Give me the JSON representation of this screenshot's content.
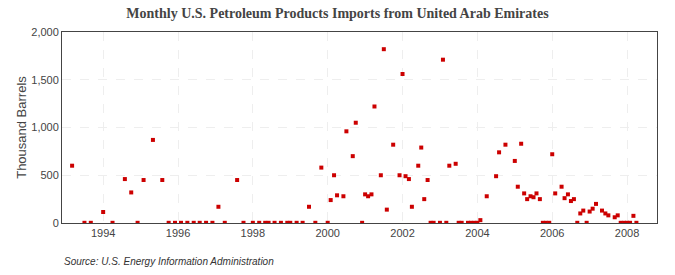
{
  "chart_data": {
    "type": "scatter",
    "title": "Monthly U.S. Petroleum Products Imports from United Arab Emirates",
    "ylabel": "Thousand Barrels",
    "annotations": [
      "Source: U.S. Energy Information Administration"
    ],
    "color": "#CC0000",
    "marker": "square",
    "grid": true,
    "xlim": [
      1992.9,
      2008.8
    ],
    "xticks": [
      1994,
      1996,
      1998,
      2000,
      2002,
      2004,
      2006,
      2008
    ],
    "ylim": [
      0,
      2000
    ],
    "yticks": [
      0,
      500,
      {
        "value": 1000,
        "label": "1,000"
      },
      {
        "value": 1500,
        "label": "1,500"
      },
      {
        "value": 2000,
        "label": "2,000"
      }
    ],
    "x": [
      1993.17,
      1993.5,
      1993.67,
      1994.0,
      1994.25,
      1994.58,
      1994.75,
      1994.92,
      1995.08,
      1995.33,
      1995.58,
      1995.75,
      1995.92,
      1996.08,
      1996.25,
      1996.42,
      1996.58,
      1996.75,
      1996.92,
      1997.08,
      1997.25,
      1997.58,
      1997.75,
      1998.0,
      1998.17,
      1998.33,
      1998.42,
      1998.58,
      1998.75,
      1998.92,
      1999.0,
      1999.17,
      1999.33,
      1999.5,
      1999.67,
      1999.83,
      2000.0,
      2000.08,
      2000.17,
      2000.25,
      2000.42,
      2000.5,
      2000.67,
      2000.75,
      2000.92,
      2001.0,
      2001.08,
      2001.17,
      2001.25,
      2001.42,
      2001.5,
      2001.58,
      2001.75,
      2001.92,
      2002.0,
      2002.08,
      2002.17,
      2002.25,
      2002.42,
      2002.5,
      2002.58,
      2002.67,
      2002.75,
      2002.83,
      2003.0,
      2003.08,
      2003.17,
      2003.25,
      2003.42,
      2003.5,
      2003.58,
      2003.75,
      2003.83,
      2003.92,
      2004.0,
      2004.08,
      2004.25,
      2004.5,
      2004.58,
      2004.75,
      2005.0,
      2005.08,
      2005.17,
      2005.25,
      2005.33,
      2005.42,
      2005.5,
      2005.58,
      2005.67,
      2005.75,
      2005.83,
      2005.92,
      2006.0,
      2006.08,
      2006.25,
      2006.33,
      2006.42,
      2006.5,
      2006.58,
      2006.67,
      2006.75,
      2006.83,
      2006.92,
      2007.0,
      2007.08,
      2007.17,
      2007.33,
      2007.42,
      2007.5,
      2007.67,
      2007.75,
      2007.83,
      2007.92,
      2008.0,
      2008.08,
      2008.17,
      2008.25
    ],
    "values": [
      600,
      2,
      2,
      115,
      2,
      460,
      320,
      2,
      450,
      870,
      450,
      2,
      2,
      2,
      2,
      2,
      2,
      2,
      2,
      170,
      2,
      450,
      2,
      2,
      2,
      2,
      2,
      2,
      2,
      2,
      2,
      2,
      2,
      170,
      2,
      580,
      2,
      240,
      500,
      290,
      280,
      960,
      700,
      1050,
      2,
      300,
      280,
      300,
      1220,
      500,
      1820,
      140,
      820,
      500,
      1560,
      490,
      460,
      170,
      600,
      790,
      250,
      450,
      2,
      2,
      2,
      1710,
      2,
      600,
      620,
      2,
      2,
      2,
      2,
      2,
      2,
      30,
      280,
      490,
      740,
      820,
      650,
      380,
      830,
      310,
      250,
      280,
      270,
      310,
      250,
      2,
      2,
      2,
      720,
      310,
      380,
      260,
      300,
      230,
      250,
      2,
      100,
      130,
      2,
      120,
      150,
      200,
      130,
      100,
      80,
      60,
      80,
      2,
      2,
      2,
      2,
      75,
      2
    ]
  }
}
